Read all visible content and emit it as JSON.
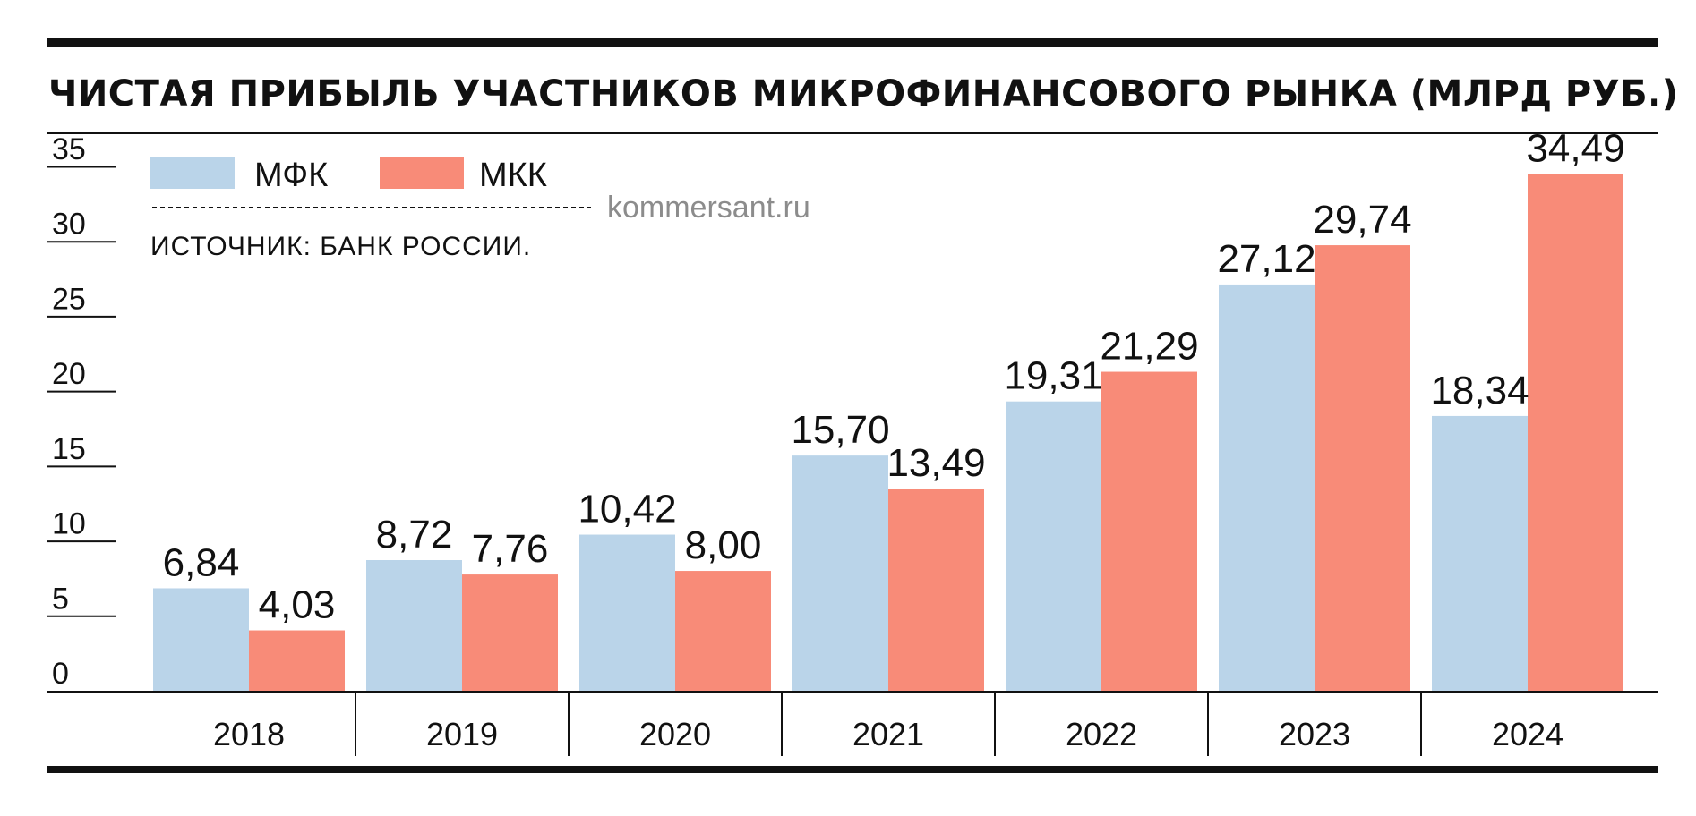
{
  "chart_data": {
    "type": "bar",
    "title": "ЧИСТАЯ ПРИБЫЛЬ УЧАСТНИКОВ МИКРОФИНАНСОВОГО РЫНКА (МЛРД РУБ.)",
    "source": "ИСТОЧНИК: БАНК РОССИИ.",
    "watermark": "kommersant.ru",
    "categories": [
      "2018",
      "2019",
      "2020",
      "2021",
      "2022",
      "2023",
      "2024"
    ],
    "series": [
      {
        "name": "МФК",
        "color": "#bad4e9",
        "values": [
          6.84,
          8.72,
          10.42,
          15.7,
          19.31,
          27.12,
          18.34
        ],
        "labels": [
          "6,84",
          "8,72",
          "10,42",
          "15,70",
          "19,31",
          "27,12",
          "18,34"
        ]
      },
      {
        "name": "МКК",
        "color": "#f88b78",
        "values": [
          4.03,
          7.76,
          8.0,
          13.49,
          21.29,
          29.74,
          34.49
        ],
        "labels": [
          "4,03",
          "7,76",
          "8,00",
          "13,49",
          "21,29",
          "29,74",
          "34,49"
        ]
      }
    ],
    "yticks": [
      0,
      5,
      10,
      15,
      20,
      25,
      30,
      35
    ],
    "ylim": [
      0,
      35
    ],
    "xlabel": "",
    "ylabel": "",
    "legend": "top-left",
    "grid": false
  }
}
